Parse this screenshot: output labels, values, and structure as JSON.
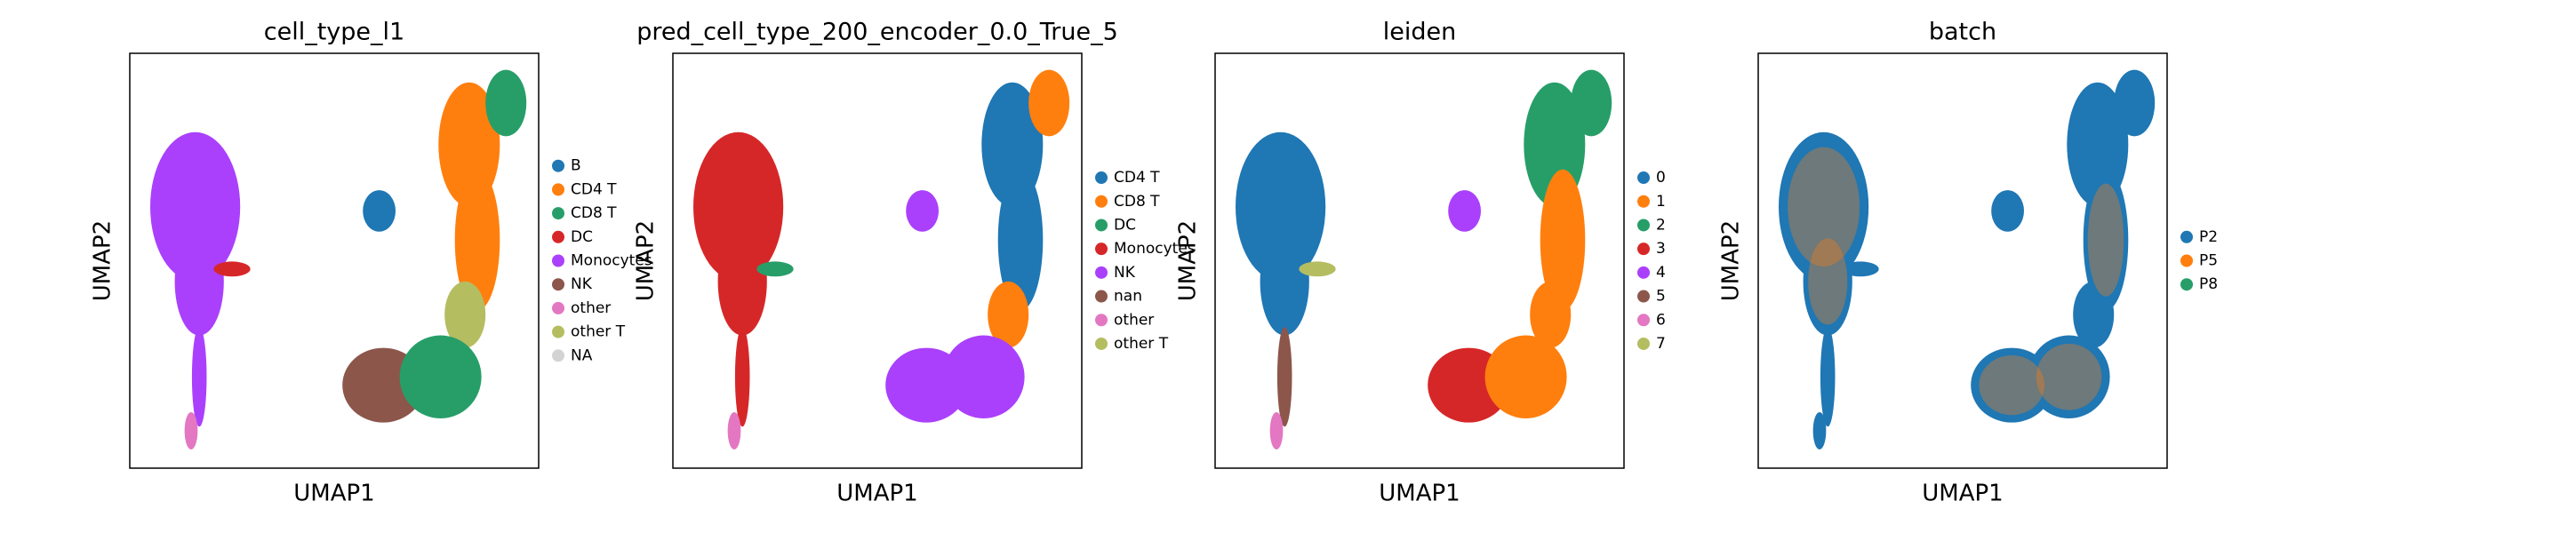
{
  "chart_data": [
    {
      "type": "scatter",
      "title": "cell_type_l1",
      "xlabel": "UMAP1",
      "ylabel": "UMAP2",
      "series": [
        {
          "name": "B",
          "color": "#1f77b4"
        },
        {
          "name": "CD4 T",
          "color": "#ff7f0e"
        },
        {
          "name": "CD8 T",
          "color": "#279e68"
        },
        {
          "name": "DC",
          "color": "#d62728"
        },
        {
          "name": "Monocytes",
          "color": "#aa40fc"
        },
        {
          "name": "NK",
          "color": "#8c564b"
        },
        {
          "name": "other",
          "color": "#e377c2"
        },
        {
          "name": "other T",
          "color": "#b5bd61"
        },
        {
          "name": "NA",
          "color": "#d3d3d3"
        }
      ]
    },
    {
      "type": "scatter",
      "title": "pred_cell_type_200_encoder_0.0_True_5",
      "xlabel": "UMAP1",
      "ylabel": "UMAP2",
      "series": [
        {
          "name": "CD4 T",
          "color": "#1f77b4"
        },
        {
          "name": "CD8 T",
          "color": "#ff7f0e"
        },
        {
          "name": "DC",
          "color": "#279e68"
        },
        {
          "name": "Monocytes",
          "color": "#d62728"
        },
        {
          "name": "NK",
          "color": "#aa40fc"
        },
        {
          "name": "nan",
          "color": "#8c564b"
        },
        {
          "name": "other",
          "color": "#e377c2"
        },
        {
          "name": "other T",
          "color": "#b5bd61"
        }
      ]
    },
    {
      "type": "scatter",
      "title": "leiden",
      "xlabel": "UMAP1",
      "ylabel": "UMAP2",
      "series": [
        {
          "name": "0",
          "color": "#1f77b4"
        },
        {
          "name": "1",
          "color": "#ff7f0e"
        },
        {
          "name": "2",
          "color": "#279e68"
        },
        {
          "name": "3",
          "color": "#d62728"
        },
        {
          "name": "4",
          "color": "#aa40fc"
        },
        {
          "name": "5",
          "color": "#8c564b"
        },
        {
          "name": "6",
          "color": "#e377c2"
        },
        {
          "name": "7",
          "color": "#b5bd61"
        }
      ]
    },
    {
      "type": "scatter",
      "title": "batch",
      "xlabel": "UMAP1",
      "ylabel": "UMAP2",
      "series": [
        {
          "name": "P2",
          "color": "#1f77b4"
        },
        {
          "name": "P5",
          "color": "#ff7f0e"
        },
        {
          "name": "P8",
          "color": "#279e68"
        }
      ]
    }
  ]
}
